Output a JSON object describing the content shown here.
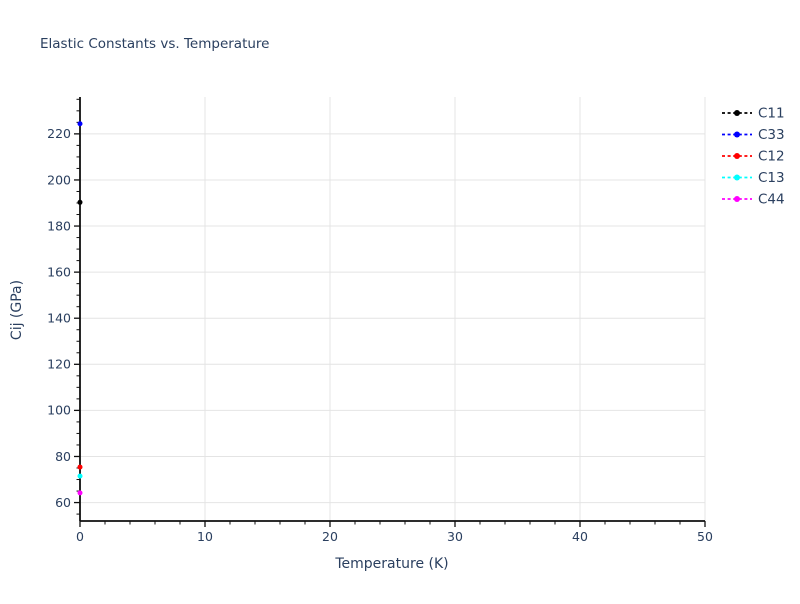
{
  "chart_data": {
    "type": "scatter",
    "title": "Elastic Constants vs. Temperature",
    "xlabel": "Temperature (K)",
    "ylabel": "Cij (GPa)",
    "xlim": [
      0,
      50
    ],
    "ylim": [
      52,
      236
    ],
    "x_major_ticks": [
      0,
      10,
      20,
      30,
      40,
      50
    ],
    "x_minor_step": 2,
    "y_major_ticks": [
      60,
      80,
      100,
      120,
      140,
      160,
      180,
      200,
      220
    ],
    "y_minor_step": 5,
    "grid": "major-both",
    "legend_position": "outside-right-top",
    "series": [
      {
        "name": "C11",
        "color": "#000000",
        "linestyle": "dotted",
        "marker": "circle",
        "x": [
          0
        ],
        "y": [
          190.3
        ]
      },
      {
        "name": "C33",
        "color": "#0000ff",
        "linestyle": "dotted",
        "marker": "circle",
        "x": [
          0
        ],
        "y": [
          224.4
        ]
      },
      {
        "name": "C12",
        "color": "#ff0000",
        "linestyle": "dotted",
        "marker": "circle",
        "x": [
          0
        ],
        "y": [
          75.4
        ]
      },
      {
        "name": "C13",
        "color": "#00ffff",
        "linestyle": "dotted",
        "marker": "circle",
        "x": [
          0
        ],
        "y": [
          71.5
        ]
      },
      {
        "name": "C44",
        "color": "#ff00ff",
        "linestyle": "dotted",
        "marker": "circle",
        "x": [
          0
        ],
        "y": [
          64.2
        ]
      }
    ],
    "style": {
      "text_color": "#2a3f5f",
      "grid_color": "#e4e4e4",
      "spine_color": "#0f0f0f",
      "background": "#ffffff"
    }
  }
}
